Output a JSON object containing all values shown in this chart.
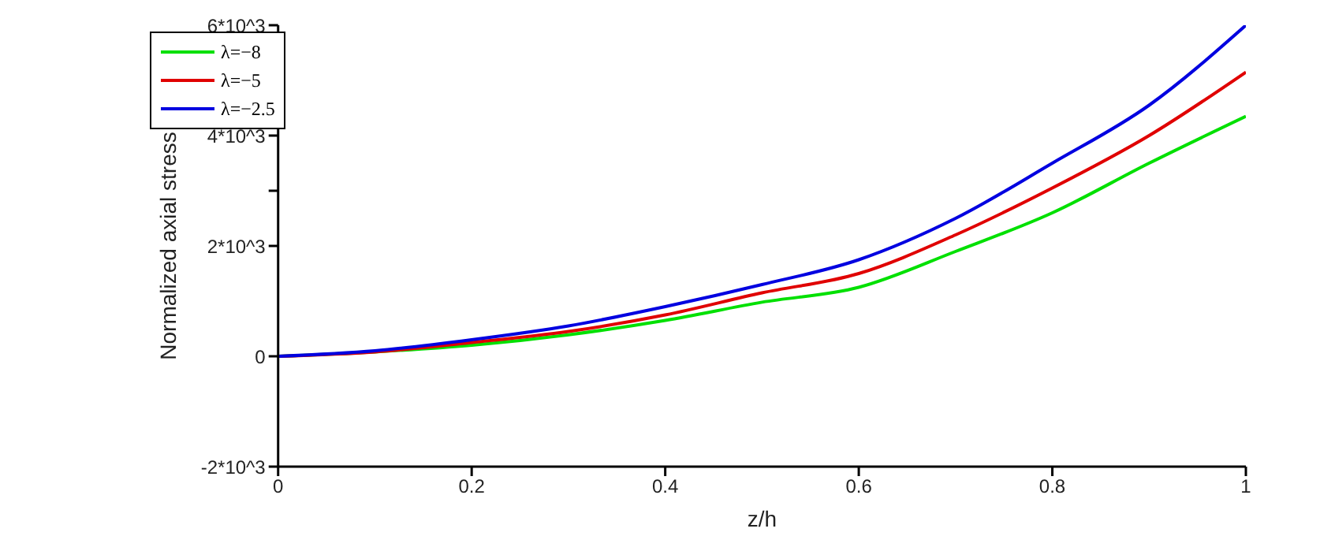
{
  "chart_data": {
    "type": "line",
    "xlabel": "z/h",
    "ylabel": "Normalized axial stress",
    "x": [
      0,
      0.1,
      0.2,
      0.3,
      0.4,
      0.5,
      0.6,
      0.7,
      0.8,
      0.9,
      1
    ],
    "series": [
      {
        "name": "λ=−8",
        "color": "#00e000",
        "values": [
          0,
          80,
          200,
          390,
          650,
          980,
          1250,
          1900,
          2600,
          3500,
          4350
        ]
      },
      {
        "name": "λ=−5",
        "color": "#e00000",
        "values": [
          0,
          80,
          250,
          450,
          750,
          1150,
          1500,
          2200,
          3050,
          4000,
          5150
        ]
      },
      {
        "name": "λ=−2.5",
        "color": "#0000e0",
        "values": [
          0,
          100,
          300,
          550,
          900,
          1300,
          1750,
          2500,
          3500,
          4550,
          6000
        ]
      }
    ],
    "xlim": [
      0,
      1
    ],
    "xticks": [
      0,
      0.2,
      0.4,
      0.6,
      0.8,
      1
    ],
    "ylim": [
      -2000,
      6000
    ],
    "yticks": [
      {
        "value": -2000,
        "label": "-2*10^3"
      },
      0,
      {
        "value": 2000,
        "label": "2*10^3"
      },
      {
        "value": 3000,
        "label": null
      },
      {
        "value": 4000,
        "label": "4*10^3"
      },
      {
        "value": 5000,
        "label": null
      },
      {
        "value": 6000,
        "label": "6*10^3"
      }
    ],
    "grid": false,
    "legend": "top left",
    "marker": "none",
    "line_style": "solid"
  }
}
